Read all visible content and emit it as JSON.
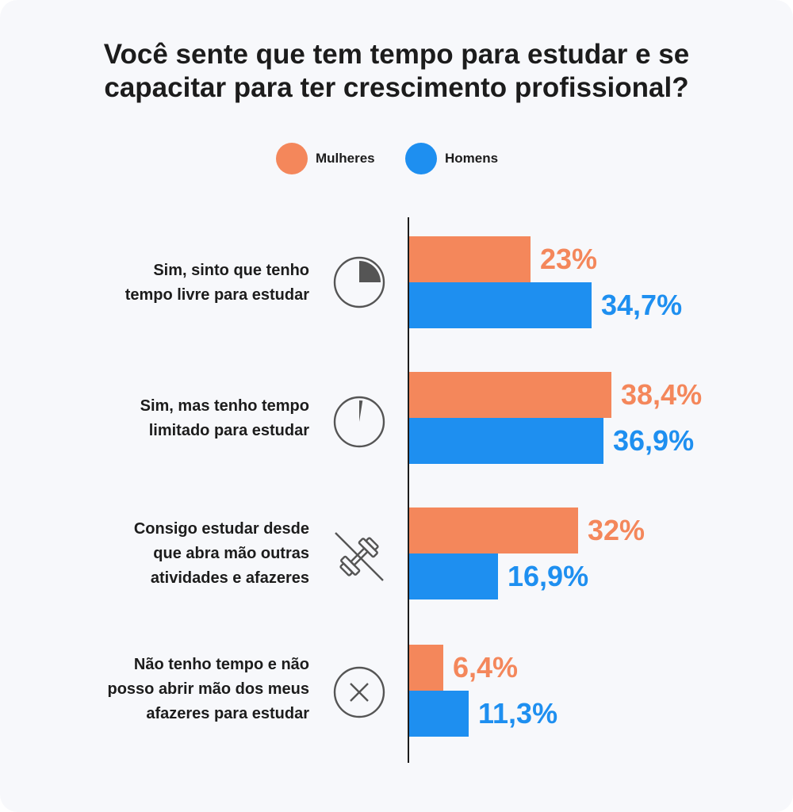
{
  "title": "Você sente que tem tempo para estudar e se capacitar para ter crescimento profissional?",
  "legend": [
    {
      "label": "Mulheres",
      "color": "#f4875b"
    },
    {
      "label": "Homens",
      "color": "#1e8ff0"
    }
  ],
  "icons": [
    "clock-quarter-icon",
    "clock-sliver-icon",
    "dumbbell-crossed-icon",
    "x-circle-icon"
  ],
  "chart_data": {
    "type": "bar",
    "orientation": "horizontal",
    "title": "Você sente que tem tempo para estudar e se capacitar para ter crescimento profissional?",
    "categories": [
      "Sim, sinto que tenho\ntempo livre para estudar",
      "Sim, mas tenho tempo\nlimitado para estudar",
      "Consigo estudar desde\nque abra mão outras\natividades e afazeres",
      "Não tenho tempo e não\nposso abrir mão dos meus\nafazeres para estudar"
    ],
    "series": [
      {
        "name": "Mulheres",
        "color": "#f4875b",
        "values": [
          23,
          38.4,
          32,
          6.4
        ],
        "labels": [
          "23%",
          "38,4%",
          "32%",
          "6,4%"
        ]
      },
      {
        "name": "Homens",
        "color": "#1e8ff0",
        "values": [
          34.7,
          36.9,
          16.9,
          11.3
        ],
        "labels": [
          "34,7%",
          "36,9%",
          "16,9%",
          "11,3%"
        ]
      }
    ],
    "xlim": [
      0,
      100
    ],
    "legend_position": "top",
    "grid": false
  }
}
